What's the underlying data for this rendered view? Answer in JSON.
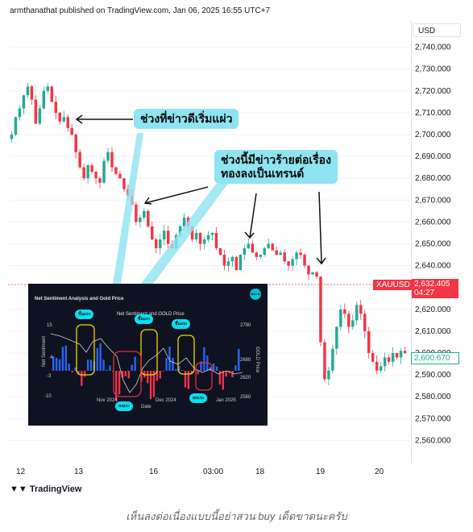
{
  "header": {
    "text": "armthanathat published on TradingView.com, Jan 06, 2025 16:55 UTC+7"
  },
  "currency": "USD",
  "symbol_tag": {
    "symbol": "XAUUSD",
    "price": "2,632.405",
    "countdown": "04:27",
    "color": "#f23645"
  },
  "last_tag": {
    "value": "2,600.670",
    "color": "#22ab94"
  },
  "branding": "TradingView",
  "caption": "เห็นลงต่อเนื่องแบบนี้อย่าสวน buy เด็ดขาดนะครับ",
  "callouts": {
    "first": "ช่วงที่ข่าวดีเริ่มแผ่ว",
    "second_line1": "ช่วงนี้มีข่าวร้ายต่อเรื่อง",
    "second_line2": "ทองลงเป็นเทรนด์"
  },
  "inset": {
    "title": "Net Sentiment Analysis and Gold Price",
    "subtitle": "Net Sentiment and GOLD Price",
    "logo": "GOLD",
    "bubbles": [
      "ขึ้นแรง",
      "ขึ้นแรง",
      "ขึ้นแรง",
      "ลงแรง",
      "ลงแรง"
    ],
    "left_axis_label": "Net Sentiment",
    "right_axis_label": "GOLD Price",
    "x_label": "Date",
    "left_ticks": [
      "15",
      "4",
      "-3",
      "-10"
    ],
    "right_ticks": [
      "2790",
      "2680",
      "2620",
      "2560"
    ],
    "x_ticks": [
      "Nov 2024",
      "Dec 2024",
      "Jan 2025"
    ]
  },
  "chart_data": {
    "type": "candlestick",
    "symbol": "XAUUSD",
    "x_ticks": [
      "12",
      "13",
      "16",
      "03:00",
      "18",
      "19",
      "20"
    ],
    "y_ticks": [
      2740,
      2730,
      2720,
      2710,
      2700,
      2690,
      2680,
      2670,
      2660,
      2650,
      2640,
      2630,
      2620,
      2610,
      2600,
      2590,
      2580,
      2570,
      2560
    ],
    "ylim": [
      2555,
      2745
    ],
    "current_price": 2632.405,
    "last_price": 2600.67,
    "colors": {
      "up": "#22ab94",
      "down": "#f23645"
    },
    "close_path": [
      2700,
      2708,
      2712,
      2718,
      2722,
      2716,
      2705,
      2712,
      2720,
      2722,
      2715,
      2710,
      2706,
      2708,
      2703,
      2700,
      2692,
      2685,
      2680,
      2686,
      2683,
      2680,
      2678,
      2688,
      2692,
      2685,
      2682,
      2680,
      2675,
      2672,
      2668,
      2660,
      2662,
      2665,
      2658,
      2652,
      2648,
      2652,
      2656,
      2650,
      2648,
      2654,
      2658,
      2662,
      2658,
      2652,
      2655,
      2650,
      2652,
      2654,
      2655,
      2648,
      2645,
      2640,
      2642,
      2644,
      2638,
      2645,
      2648,
      2650,
      2646,
      2644,
      2645,
      2648,
      2650,
      2647,
      2645,
      2646,
      2642,
      2640,
      2643,
      2646,
      2645,
      2640,
      2636,
      2637,
      2635,
      2605,
      2588,
      2592,
      2602,
      2612,
      2620,
      2618,
      2612,
      2615,
      2622,
      2618,
      2610,
      2600,
      2596,
      2592,
      2594,
      2598,
      2596,
      2600,
      2598,
      2601,
      2600
    ]
  }
}
